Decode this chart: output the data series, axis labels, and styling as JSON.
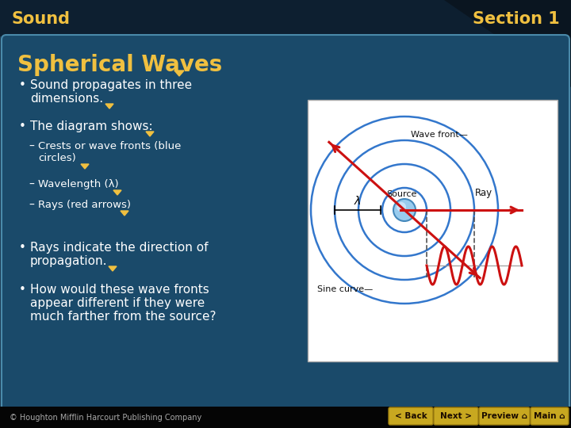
{
  "bg_color": "#1c3a52",
  "header_bg": "#0d1f30",
  "corner_bg": "#0a1520",
  "panel_bg": "#1a4a6a",
  "panel_edge": "#4a8aaa",
  "title_color": "#f0c040",
  "header_text_color": "#f0c040",
  "body_text_color": "#ffffff",
  "footer_text_color": "#aaaaaa",
  "footer_bg": "#0a0a0a",
  "slide_title": "Sound",
  "section_label": "Section 1",
  "heading": "Spherical Waves",
  "footer": "© Houghton Mifflin Harcourt Publishing Company",
  "nav_buttons": [
    "< Back",
    "Next >",
    "Preview ⌂",
    "Main ⌂"
  ],
  "nav_bg": "#c8a820",
  "nav_text": "#1a0a00",
  "diagram_bg": "#ffffff",
  "circle_color": "#3377cc",
  "arrow_color": "#cc1111",
  "sine_color": "#cc1111",
  "source_color_center": "#aaddff",
  "source_color_edge": "#4499cc",
  "label_color": "#000000",
  "dashed_color": "#555555"
}
